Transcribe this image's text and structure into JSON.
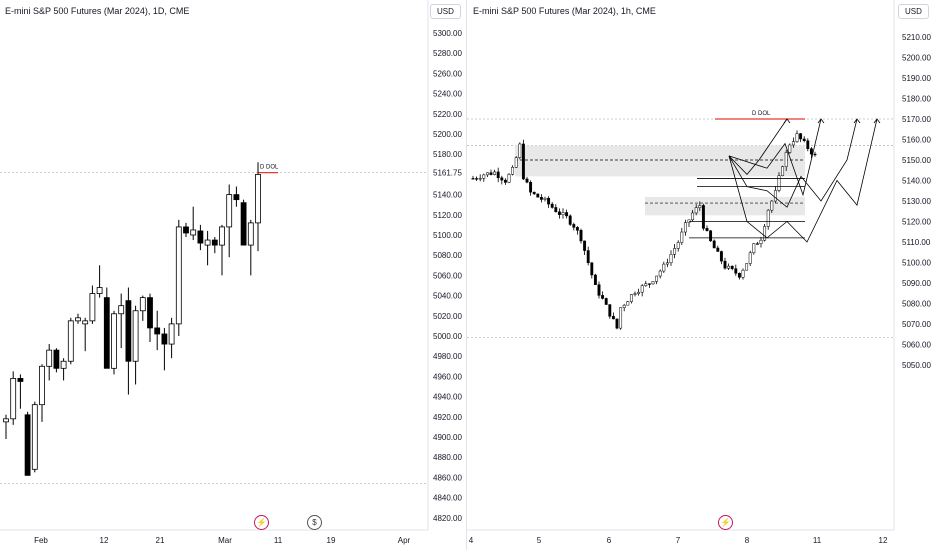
{
  "colors": {
    "up": "#ffffff",
    "down": "#000000",
    "wick": "#000000",
    "dol_line": "#e53935",
    "zone": "#e6e6e6",
    "grid": "#e0e3eb",
    "text": "#131722"
  },
  "icons": [
    "lightning-icon",
    "dividend-icon"
  ],
  "left": {
    "title": "E-mini S&P 500 Futures (Mar 2024), 1D, CME",
    "currency": "USD",
    "dol_label": "D DOL",
    "chart_data": {
      "type": "candlestick",
      "y_ticks": [
        "5300.00",
        "5280.00",
        "5260.00",
        "5240.00",
        "5220.00",
        "5200.00",
        "5180.00",
        "5161.75",
        "5140.00",
        "5120.00",
        "5100.00",
        "5080.00",
        "5060.00",
        "5040.00",
        "5020.00",
        "5000.00",
        "4980.00",
        "4960.00",
        "4940.00",
        "4920.00",
        "4900.00",
        "4880.00",
        "4860.00",
        "4840.00",
        "4820.00"
      ],
      "x_labels": [
        "Feb",
        "12",
        "21",
        "Mar",
        "11",
        "19",
        "Apr"
      ],
      "candles": [
        [
          4915,
          4922,
          4898,
          4918
        ],
        [
          4918,
          4965,
          4912,
          4958
        ],
        [
          4958,
          4962,
          4928,
          4955
        ],
        [
          4922,
          4925,
          4862,
          4862
        ],
        [
          4868,
          4935,
          4865,
          4932
        ],
        [
          4932,
          4972,
          4915,
          4970
        ],
        [
          4970,
          4992,
          4956,
          4986
        ],
        [
          4986,
          4988,
          4964,
          4968
        ],
        [
          4968,
          4978,
          4956,
          4975
        ],
        [
          4975,
          5018,
          4972,
          5015
        ],
        [
          5015,
          5022,
          5012,
          5018
        ],
        [
          5012,
          5018,
          4985,
          5015
        ],
        [
          5015,
          5050,
          5012,
          5042
        ],
        [
          5042,
          5070,
          5038,
          5048
        ],
        [
          5038,
          5048,
          4968,
          4968
        ],
        [
          4968,
          5025,
          4962,
          5022
        ],
        [
          5022,
          5042,
          4988,
          5030
        ],
        [
          5035,
          5048,
          4942,
          4975
        ],
        [
          4975,
          5030,
          4952,
          5025
        ],
        [
          5025,
          5040,
          5015,
          5038
        ],
        [
          5038,
          5042,
          4994,
          5008
        ],
        [
          5008,
          5025,
          4986,
          5002
        ],
        [
          5002,
          5008,
          4966,
          4992
        ],
        [
          4992,
          5018,
          4978,
          5012
        ],
        [
          5012,
          5115,
          5000,
          5108
        ],
        [
          5108,
          5112,
          5098,
          5102
        ],
        [
          5100,
          5128,
          5095,
          5105
        ],
        [
          5104,
          5110,
          5085,
          5092
        ],
        [
          5090,
          5104,
          5070,
          5095
        ],
        [
          5095,
          5098,
          5082,
          5090
        ],
        [
          5090,
          5110,
          5060,
          5108
        ],
        [
          5108,
          5150,
          5078,
          5140
        ],
        [
          5140,
          5148,
          5128,
          5135
        ],
        [
          5132,
          5135,
          5092,
          5090
        ],
        [
          5090,
          5115,
          5060,
          5112
        ],
        [
          5112,
          5172,
          5084,
          5160
        ]
      ],
      "dol_level": 5161.75,
      "bottom_level": 4862
    }
  },
  "right": {
    "title": "E-mini S&P 500 Futures (Mar 2024), 1h, CME",
    "currency": "USD",
    "dol_label": "D DOL",
    "chart_data": {
      "type": "candlestick",
      "y_ticks": [
        "5210.00",
        "5200.00",
        "5190.00",
        "5180.00",
        "5170.00",
        "5160.00",
        "5150.00",
        "5140.00",
        "5130.00",
        "5120.00",
        "5110.00",
        "5100.00",
        "5090.00",
        "5080.00",
        "5070.00",
        "5060.00",
        "5050.00"
      ],
      "x_labels": [
        "4",
        "5",
        "6",
        "7",
        "8",
        "11",
        "12"
      ],
      "path_points": [
        [
          0,
          5141
        ],
        [
          3,
          5143
        ],
        [
          6,
          5144
        ],
        [
          9,
          5140
        ],
        [
          11,
          5145
        ],
        [
          13,
          5157
        ],
        [
          14,
          5142
        ],
        [
          16,
          5134
        ],
        [
          18,
          5132
        ],
        [
          20,
          5130
        ],
        [
          22,
          5127
        ],
        [
          24,
          5124
        ],
        [
          26,
          5122
        ],
        [
          28,
          5118
        ],
        [
          30,
          5112
        ],
        [
          32,
          5100
        ],
        [
          34,
          5088
        ],
        [
          36,
          5082
        ],
        [
          38,
          5075
        ],
        [
          40,
          5068
        ],
        [
          41,
          5078
        ],
        [
          43,
          5082
        ],
        [
          45,
          5086
        ],
        [
          47,
          5088
        ],
        [
          49,
          5090
        ],
        [
          51,
          5094
        ],
        [
          53,
          5098
        ],
        [
          55,
          5104
        ],
        [
          57,
          5110
        ],
        [
          59,
          5118
        ],
        [
          61,
          5124
        ],
        [
          63,
          5128
        ],
        [
          64,
          5118
        ],
        [
          66,
          5110
        ],
        [
          68,
          5104
        ],
        [
          70,
          5098
        ],
        [
          72,
          5096
        ],
        [
          74,
          5094
        ],
        [
          76,
          5100
        ],
        [
          78,
          5108
        ],
        [
          80,
          5112
        ],
        [
          82,
          5126
        ],
        [
          84,
          5134
        ],
        [
          86,
          5148
        ],
        [
          88,
          5158
        ],
        [
          90,
          5162
        ],
        [
          92,
          5158
        ],
        [
          94,
          5154
        ],
        [
          96,
          5150
        ]
      ],
      "dol_level": 5170,
      "upper_zone": [
        5142,
        5157
      ],
      "lower_zone": [
        5123,
        5132
      ],
      "dashed_levels": [
        5150,
        5129
      ],
      "bottom_level": 5065
    }
  }
}
